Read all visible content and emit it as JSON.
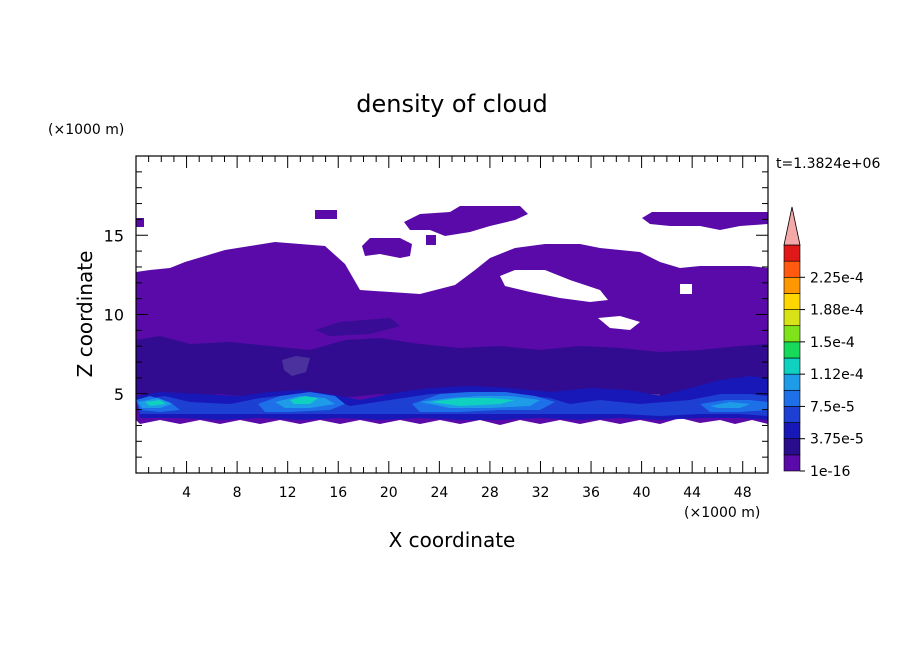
{
  "chart_data": {
    "type": "heatmap",
    "title": "density of cloud",
    "xlabel": "X coordinate",
    "ylabel": "Z coordinate",
    "x_unit": "(×1000 m)",
    "y_unit": "(×1000 m)",
    "time_label": "t=1.3824e+06",
    "xlim": [
      0,
      50
    ],
    "ylim": [
      0,
      20
    ],
    "xticks": [
      4,
      8,
      12,
      16,
      20,
      24,
      28,
      32,
      36,
      40,
      44,
      48
    ],
    "yticks": [
      5,
      10,
      15
    ],
    "colorbar": {
      "labels": [
        "2.25e-4",
        "1.88e-4",
        "1.5e-4",
        "1.12e-4",
        "7.5e-5",
        "3.75e-5",
        "1e-16"
      ],
      "levels": [
        "1e-16",
        "1.88e-5",
        "3.75e-5",
        "5.63e-5",
        "7.5e-5",
        "9.38e-5",
        "1.12e-4",
        "1.31e-4",
        "1.5e-4",
        "1.69e-4",
        "1.88e-4",
        "2.06e-4",
        "2.25e-4",
        "2.44e-4"
      ],
      "colors": [
        "#5a0aa8",
        "#2a0d8c",
        "#1818b8",
        "#1d3fd2",
        "#1d70e8",
        "#1e9ce8",
        "#10d0c0",
        "#17d95a",
        "#7ee319",
        "#d7e317",
        "#ffd600",
        "#ff9800",
        "#ff5a10",
        "#e01818"
      ],
      "overflow_color": "#f4a8a8"
    },
    "regions": [
      {
        "level": 0,
        "description": "cloud layer base",
        "x_range": [
          0,
          50
        ],
        "z_range": [
          3.3,
          12.8
        ]
      },
      {
        "level": 0,
        "description": "upper cloud",
        "x_range": [
          16,
          50
        ],
        "z_range": [
          12.8,
          16.8
        ]
      },
      {
        "level": 1,
        "description": "mid-layer dark band",
        "x_range": [
          0,
          50
        ],
        "z_range": [
          6,
          8
        ]
      },
      {
        "level": 4,
        "description": "lower core",
        "x_range": [
          1,
          50
        ],
        "z_range": [
          3.8,
          5.2
        ]
      },
      {
        "level": 6,
        "description": "lower core peak",
        "x_range": [
          12,
          15
        ],
        "z_range": [
          4.4,
          4.9
        ]
      }
    ]
  }
}
